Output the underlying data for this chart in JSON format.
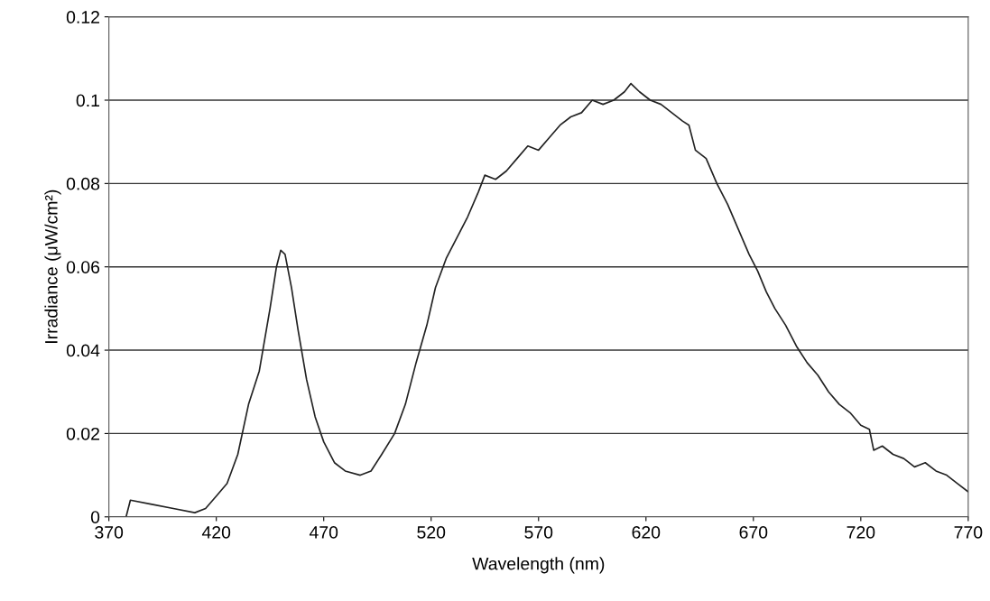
{
  "chart_data": {
    "type": "line",
    "xlabel": "Wavelength (nm)",
    "ylabel": "Irradiance (μW/cm²)",
    "xlim": [
      370,
      770
    ],
    "xticks": [
      370,
      420,
      470,
      520,
      570,
      620,
      670,
      720,
      770
    ],
    "ylim": [
      0,
      0.12
    ],
    "yticks": [
      0,
      0.02,
      0.04,
      0.06,
      0.08,
      0.1,
      0.12
    ],
    "grid": "y",
    "marker": "none",
    "line_style": "solid",
    "series": [
      {
        "color": "#222222",
        "x": [
          370,
          378,
          380,
          390,
          400,
          410,
          415,
          420,
          425,
          430,
          435,
          440,
          445,
          448,
          450,
          452,
          455,
          458,
          462,
          466,
          470,
          475,
          480,
          487,
          492,
          497,
          503,
          508,
          513,
          518,
          522,
          527,
          532,
          537,
          542,
          545,
          550,
          555,
          560,
          565,
          570,
          575,
          580,
          585,
          590,
          595,
          600,
          605,
          610,
          613,
          617,
          622,
          627,
          632,
          637,
          640,
          643,
          648,
          653,
          658,
          663,
          668,
          672,
          676,
          680,
          685,
          690,
          695,
          700,
          705,
          710,
          715,
          720,
          724,
          726,
          730,
          735,
          740,
          745,
          750,
          755,
          760,
          765,
          770
        ],
        "values": [
          0.0,
          0.0,
          0.004,
          0.003,
          0.002,
          0.001,
          0.002,
          0.005,
          0.008,
          0.015,
          0.027,
          0.035,
          0.05,
          0.06,
          0.064,
          0.063,
          0.055,
          0.045,
          0.033,
          0.024,
          0.018,
          0.013,
          0.011,
          0.01,
          0.011,
          0.015,
          0.02,
          0.027,
          0.037,
          0.046,
          0.055,
          0.062,
          0.067,
          0.072,
          0.078,
          0.082,
          0.081,
          0.083,
          0.086,
          0.089,
          0.088,
          0.091,
          0.094,
          0.096,
          0.097,
          0.1,
          0.099,
          0.1,
          0.102,
          0.104,
          0.102,
          0.1,
          0.099,
          0.097,
          0.095,
          0.094,
          0.088,
          0.086,
          0.08,
          0.075,
          0.069,
          0.063,
          0.059,
          0.054,
          0.05,
          0.046,
          0.041,
          0.037,
          0.034,
          0.03,
          0.027,
          0.025,
          0.022,
          0.021,
          0.016,
          0.017,
          0.015,
          0.014,
          0.012,
          0.013,
          0.011,
          0.01,
          0.008,
          0.006
        ]
      }
    ]
  }
}
